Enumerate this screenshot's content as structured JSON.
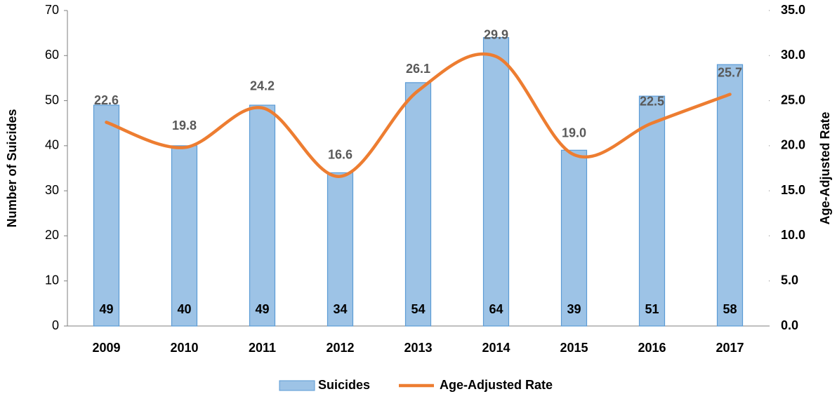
{
  "chart_data": {
    "type": "bar",
    "categories": [
      "2009",
      "2010",
      "2011",
      "2012",
      "2013",
      "2014",
      "2015",
      "2016",
      "2017"
    ],
    "series": [
      {
        "name": "Suicides",
        "type": "bar",
        "color": "#9dc3e6",
        "values": [
          49,
          40,
          49,
          34,
          54,
          64,
          39,
          51,
          58
        ]
      },
      {
        "name": "Age-Adjusted Rate",
        "type": "line",
        "axis": "y2",
        "color": "#ed7d31",
        "values": [
          22.6,
          19.8,
          24.2,
          16.6,
          26.1,
          29.9,
          19.0,
          22.5,
          25.7
        ],
        "value_labels": [
          "22.6",
          "19.8",
          "24.2",
          "16.6",
          "26.1",
          "29.9",
          "19.0",
          "22.5",
          "25.7"
        ]
      }
    ],
    "ylabel": "Number of Suicides",
    "y2label": "Age-Adjusted Rate",
    "ylim": [
      0,
      70
    ],
    "yticks": [
      0,
      10,
      20,
      30,
      40,
      50,
      60,
      70
    ],
    "y2lim": [
      0,
      35
    ],
    "y2ticks": [
      {
        "value": 0,
        "label": "0.0"
      },
      {
        "value": 5,
        "label": "5.0"
      },
      {
        "value": 10,
        "label": "10.0"
      },
      {
        "value": 15,
        "label": "15.0"
      },
      {
        "value": 20,
        "label": "20.0"
      },
      {
        "value": 25,
        "label": "25.0"
      },
      {
        "value": 30,
        "label": "30.0"
      },
      {
        "value": 35,
        "label": "35.0"
      }
    ],
    "grid": false,
    "legend": "bottom"
  }
}
